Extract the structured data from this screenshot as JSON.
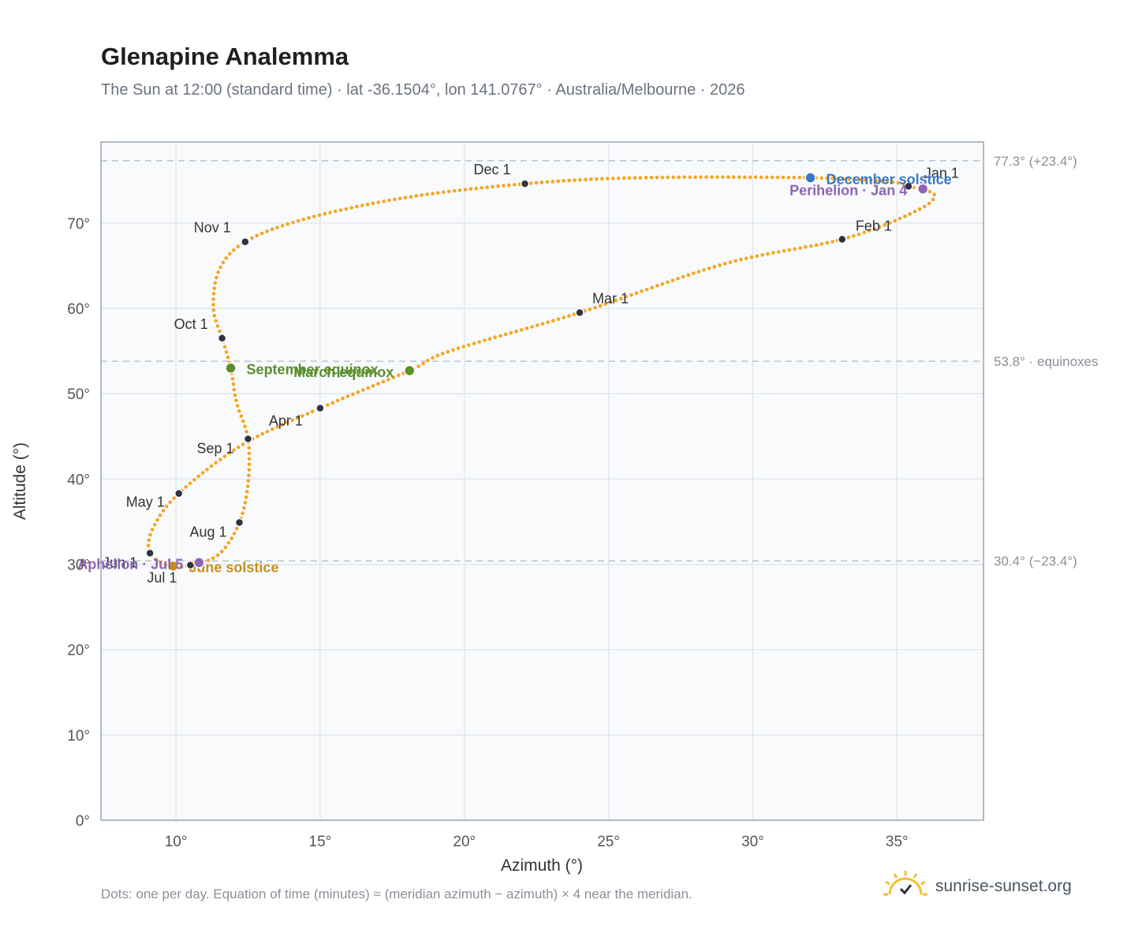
{
  "title": "Glenapine Analemma",
  "subtitle": "The Sun at 12:00 (standard time) · lat -36.1504°, lon 141.0767° · Australia/Melbourne · 2026",
  "footnote": "Dots: one per day. Equation of time (minutes) ≈ (meridian azimuth − azimuth) × 4 near the meridian.",
  "brand": "sunrise-sunset.org",
  "colors": {
    "curve": "#f5a623",
    "month_dot": "#2d3340",
    "equinox": "#5b8f2e",
    "december_solstice": "#3b78c2",
    "june_solstice": "#c8901a",
    "apsis": "#8e64b5",
    "grid": "#e3e8ee",
    "plot_bg": "#f8fafc",
    "ref_line": "#b8c4cf"
  },
  "chart_data": {
    "type": "scatter",
    "title": "Glenapine Analemma",
    "xlabel": "Azimuth (°)",
    "ylabel": "Altitude (°)",
    "xlim": [
      7.4,
      38.0
    ],
    "ylim": [
      0,
      79.5
    ],
    "x_ticks": [
      "10°",
      "15°",
      "20°",
      "25°",
      "30°",
      "35°"
    ],
    "y_ticks": [
      "0°",
      "10°",
      "20°",
      "30°",
      "40°",
      "50°",
      "60°",
      "70°"
    ],
    "grid": true,
    "reference_lines": [
      {
        "y": 77.3,
        "label": "77.3° (+23.4°)"
      },
      {
        "y": 53.8,
        "label": "53.8° · equinoxes"
      },
      {
        "y": 30.4,
        "label": "30.4° (−23.4°)"
      }
    ],
    "series": [
      {
        "name": "daily",
        "note": "Dots: one per day",
        "path_keypoints": [
          [
            35.4,
            74.3
          ],
          [
            36.3,
            73.3
          ],
          [
            35.6,
            71.3
          ],
          [
            33.1,
            68.1
          ],
          [
            29.0,
            65.2
          ],
          [
            24.0,
            59.5
          ],
          [
            19.5,
            55.0
          ],
          [
            18.1,
            52.7
          ],
          [
            15.0,
            48.3
          ],
          [
            12.3,
            44.0
          ],
          [
            10.1,
            38.3
          ],
          [
            9.2,
            34.2
          ],
          [
            9.1,
            31.3
          ],
          [
            9.8,
            29.8
          ],
          [
            10.5,
            29.9
          ],
          [
            11.5,
            31.2
          ],
          [
            12.2,
            34.9
          ],
          [
            12.5,
            39.5
          ],
          [
            12.5,
            44.7
          ],
          [
            12.1,
            49.0
          ],
          [
            11.9,
            53.0
          ],
          [
            11.6,
            56.5
          ],
          [
            11.3,
            60.0
          ],
          [
            11.5,
            64.5
          ],
          [
            12.4,
            67.8
          ],
          [
            14.5,
            70.5
          ],
          [
            18.0,
            73.0
          ],
          [
            22.1,
            74.6
          ],
          [
            26.0,
            75.3
          ],
          [
            32.0,
            75.3
          ],
          [
            34.8,
            74.8
          ],
          [
            35.4,
            74.3
          ]
        ]
      }
    ],
    "month_points": [
      {
        "label": "Jan 1",
        "x": 35.4,
        "y": 74.3
      },
      {
        "label": "Feb 1",
        "x": 33.1,
        "y": 68.1
      },
      {
        "label": "Mar 1",
        "x": 24.0,
        "y": 59.5
      },
      {
        "label": "Apr 1",
        "x": 15.0,
        "y": 48.3
      },
      {
        "label": "May 1",
        "x": 10.1,
        "y": 38.3
      },
      {
        "label": "Jun 1",
        "x": 9.1,
        "y": 31.3
      },
      {
        "label": "Jul 1",
        "x": 10.5,
        "y": 29.9
      },
      {
        "label": "Aug 1",
        "x": 12.2,
        "y": 34.9
      },
      {
        "label": "Sep 1",
        "x": 12.5,
        "y": 44.7
      },
      {
        "label": "Oct 1",
        "x": 11.6,
        "y": 56.5
      },
      {
        "label": "Nov 1",
        "x": 12.4,
        "y": 67.8
      },
      {
        "label": "Dec 1",
        "x": 22.1,
        "y": 74.6
      }
    ],
    "events": [
      {
        "label": "December solstice",
        "x": 32.0,
        "y": 75.3,
        "color_key": "december_solstice"
      },
      {
        "label": "Perihelion · Jan 4",
        "x": 35.9,
        "y": 74.0,
        "color_key": "apsis"
      },
      {
        "label": "September equinox",
        "x": 11.9,
        "y": 53.0,
        "color_key": "equinox"
      },
      {
        "label": "March equinox",
        "x": 18.1,
        "y": 52.7,
        "color_key": "equinox"
      },
      {
        "label": "June solstice",
        "x": 9.9,
        "y": 29.8,
        "color_key": "june_solstice"
      },
      {
        "label": "Aphelion · Jul 5",
        "x": 10.8,
        "y": 30.2,
        "color_key": "apsis"
      }
    ]
  }
}
